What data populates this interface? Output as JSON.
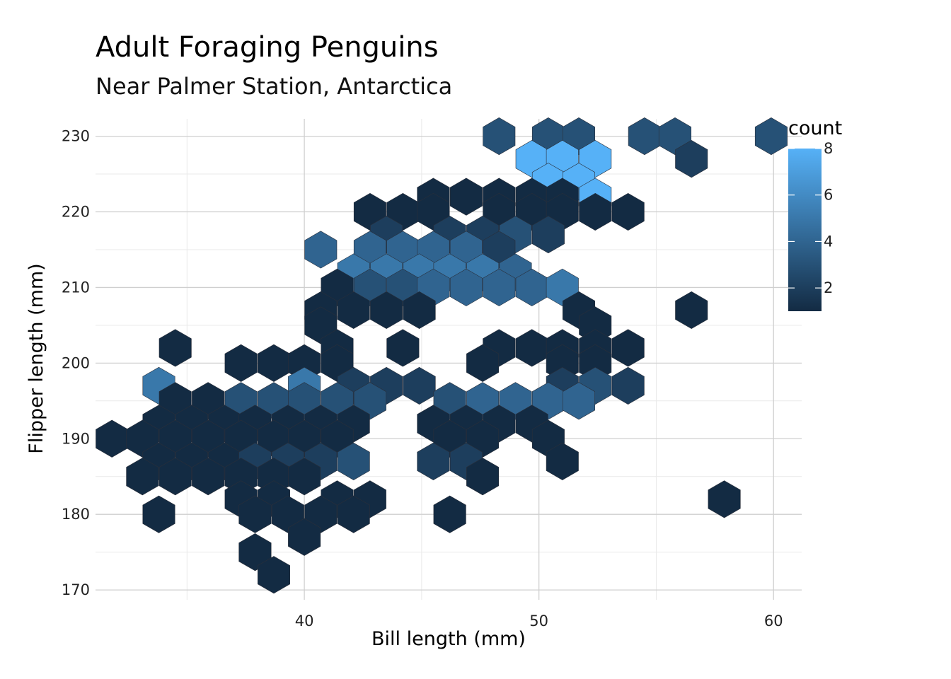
{
  "chart_data": {
    "type": "hexbin",
    "title": "Adult Foraging Penguins",
    "subtitle": "Near Palmer Station, Antarctica",
    "xlabel": "Bill length (mm)",
    "ylabel": "Flipper length (mm)",
    "xlim": [
      31.1,
      61.2
    ],
    "ylim": [
      168.7,
      232.3
    ],
    "x_ticks": [
      40,
      50,
      60
    ],
    "y_ticks": [
      170,
      180,
      190,
      200,
      210,
      220,
      230
    ],
    "hex_dx": 1.37,
    "hex_dy": 2.0,
    "legend": {
      "title": "count",
      "breaks": [
        2,
        4,
        6,
        8
      ],
      "range": [
        1,
        8
      ],
      "color_low": "#132B43",
      "color_high": "#56B1F7"
    },
    "bins": [
      {
        "x": 48.3,
        "y": 230.0,
        "count": 3
      },
      {
        "x": 50.4,
        "y": 230.0,
        "count": 3
      },
      {
        "x": 51.7,
        "y": 230.0,
        "count": 3
      },
      {
        "x": 54.5,
        "y": 230.0,
        "count": 3
      },
      {
        "x": 55.8,
        "y": 230.0,
        "count": 3
      },
      {
        "x": 59.9,
        "y": 230.0,
        "count": 3
      },
      {
        "x": 49.7,
        "y": 227.0,
        "count": 8
      },
      {
        "x": 51.0,
        "y": 227.0,
        "count": 8
      },
      {
        "x": 52.4,
        "y": 227.0,
        "count": 8
      },
      {
        "x": 56.5,
        "y": 227.0,
        "count": 2
      },
      {
        "x": 50.4,
        "y": 224.0,
        "count": 8
      },
      {
        "x": 51.7,
        "y": 224.0,
        "count": 8
      },
      {
        "x": 45.5,
        "y": 222.0,
        "count": 1
      },
      {
        "x": 46.9,
        "y": 222.0,
        "count": 1
      },
      {
        "x": 48.3,
        "y": 222.0,
        "count": 1
      },
      {
        "x": 49.7,
        "y": 222.0,
        "count": 1
      },
      {
        "x": 51.0,
        "y": 222.0,
        "count": 1
      },
      {
        "x": 52.4,
        "y": 222.0,
        "count": 8
      },
      {
        "x": 42.8,
        "y": 220.0,
        "count": 1
      },
      {
        "x": 44.2,
        "y": 220.0,
        "count": 1
      },
      {
        "x": 45.5,
        "y": 220.0,
        "count": 1
      },
      {
        "x": 48.3,
        "y": 220.0,
        "count": 1
      },
      {
        "x": 49.7,
        "y": 220.0,
        "count": 1
      },
      {
        "x": 51.0,
        "y": 220.0,
        "count": 1
      },
      {
        "x": 52.4,
        "y": 220.0,
        "count": 1
      },
      {
        "x": 53.8,
        "y": 220.0,
        "count": 1
      },
      {
        "x": 43.5,
        "y": 217.0,
        "count": 2
      },
      {
        "x": 46.2,
        "y": 217.0,
        "count": 2
      },
      {
        "x": 47.6,
        "y": 217.0,
        "count": 2
      },
      {
        "x": 49.0,
        "y": 217.0,
        "count": 3
      },
      {
        "x": 50.4,
        "y": 217.0,
        "count": 2
      },
      {
        "x": 40.7,
        "y": 215.0,
        "count": 4
      },
      {
        "x": 42.8,
        "y": 215.0,
        "count": 4
      },
      {
        "x": 44.2,
        "y": 215.0,
        "count": 4
      },
      {
        "x": 45.5,
        "y": 215.0,
        "count": 4
      },
      {
        "x": 46.9,
        "y": 215.0,
        "count": 4
      },
      {
        "x": 48.3,
        "y": 215.0,
        "count": 2
      },
      {
        "x": 42.1,
        "y": 212.0,
        "count": 5
      },
      {
        "x": 43.5,
        "y": 212.0,
        "count": 5
      },
      {
        "x": 44.9,
        "y": 212.0,
        "count": 5
      },
      {
        "x": 46.2,
        "y": 212.0,
        "count": 5
      },
      {
        "x": 47.6,
        "y": 212.0,
        "count": 5
      },
      {
        "x": 49.0,
        "y": 212.0,
        "count": 4
      },
      {
        "x": 41.4,
        "y": 210.0,
        "count": 1
      },
      {
        "x": 42.8,
        "y": 210.0,
        "count": 3
      },
      {
        "x": 44.2,
        "y": 210.0,
        "count": 3
      },
      {
        "x": 45.5,
        "y": 210.0,
        "count": 4
      },
      {
        "x": 46.9,
        "y": 210.0,
        "count": 4
      },
      {
        "x": 48.3,
        "y": 210.0,
        "count": 4
      },
      {
        "x": 49.7,
        "y": 210.0,
        "count": 4
      },
      {
        "x": 51.0,
        "y": 210.0,
        "count": 5
      },
      {
        "x": 40.7,
        "y": 207.0,
        "count": 1
      },
      {
        "x": 42.1,
        "y": 207.0,
        "count": 1
      },
      {
        "x": 43.5,
        "y": 207.0,
        "count": 1
      },
      {
        "x": 44.9,
        "y": 207.0,
        "count": 1
      },
      {
        "x": 51.7,
        "y": 207.0,
        "count": 1
      },
      {
        "x": 56.5,
        "y": 207.0,
        "count": 1
      },
      {
        "x": 40.7,
        "y": 205.0,
        "count": 1
      },
      {
        "x": 52.4,
        "y": 205.0,
        "count": 1
      },
      {
        "x": 34.5,
        "y": 202.0,
        "count": 1
      },
      {
        "x": 41.4,
        "y": 202.0,
        "count": 1
      },
      {
        "x": 44.2,
        "y": 202.0,
        "count": 1
      },
      {
        "x": 48.3,
        "y": 202.0,
        "count": 1
      },
      {
        "x": 49.7,
        "y": 202.0,
        "count": 1
      },
      {
        "x": 51.0,
        "y": 202.0,
        "count": 1
      },
      {
        "x": 52.4,
        "y": 202.0,
        "count": 1
      },
      {
        "x": 53.8,
        "y": 202.0,
        "count": 1
      },
      {
        "x": 37.3,
        "y": 200.0,
        "count": 1
      },
      {
        "x": 38.7,
        "y": 200.0,
        "count": 1
      },
      {
        "x": 40.0,
        "y": 200.0,
        "count": 1
      },
      {
        "x": 41.4,
        "y": 200.0,
        "count": 1
      },
      {
        "x": 47.6,
        "y": 200.0,
        "count": 1
      },
      {
        "x": 51.0,
        "y": 200.0,
        "count": 1
      },
      {
        "x": 52.4,
        "y": 200.0,
        "count": 1
      },
      {
        "x": 33.8,
        "y": 197.0,
        "count": 5
      },
      {
        "x": 40.0,
        "y": 197.0,
        "count": 5
      },
      {
        "x": 42.1,
        "y": 197.0,
        "count": 2
      },
      {
        "x": 43.5,
        "y": 197.0,
        "count": 2
      },
      {
        "x": 44.9,
        "y": 197.0,
        "count": 2
      },
      {
        "x": 51.0,
        "y": 197.0,
        "count": 2
      },
      {
        "x": 52.4,
        "y": 197.0,
        "count": 3
      },
      {
        "x": 53.8,
        "y": 197.0,
        "count": 2
      },
      {
        "x": 34.5,
        "y": 195.0,
        "count": 1
      },
      {
        "x": 35.9,
        "y": 195.0,
        "count": 1
      },
      {
        "x": 37.3,
        "y": 195.0,
        "count": 3
      },
      {
        "x": 38.7,
        "y": 195.0,
        "count": 3
      },
      {
        "x": 40.0,
        "y": 195.0,
        "count": 3
      },
      {
        "x": 41.4,
        "y": 195.0,
        "count": 3
      },
      {
        "x": 42.8,
        "y": 195.0,
        "count": 3
      },
      {
        "x": 46.2,
        "y": 195.0,
        "count": 3
      },
      {
        "x": 47.6,
        "y": 195.0,
        "count": 4
      },
      {
        "x": 49.0,
        "y": 195.0,
        "count": 4
      },
      {
        "x": 50.4,
        "y": 195.0,
        "count": 4
      },
      {
        "x": 51.7,
        "y": 195.0,
        "count": 4
      },
      {
        "x": 33.8,
        "y": 192.0,
        "count": 1
      },
      {
        "x": 35.2,
        "y": 192.0,
        "count": 1
      },
      {
        "x": 36.6,
        "y": 192.0,
        "count": 1
      },
      {
        "x": 37.9,
        "y": 192.0,
        "count": 1
      },
      {
        "x": 39.3,
        "y": 192.0,
        "count": 1
      },
      {
        "x": 40.7,
        "y": 192.0,
        "count": 1
      },
      {
        "x": 42.1,
        "y": 192.0,
        "count": 1
      },
      {
        "x": 45.5,
        "y": 192.0,
        "count": 1
      },
      {
        "x": 46.9,
        "y": 192.0,
        "count": 1
      },
      {
        "x": 48.3,
        "y": 192.0,
        "count": 1
      },
      {
        "x": 49.7,
        "y": 192.0,
        "count": 1
      },
      {
        "x": 31.8,
        "y": 190.0,
        "count": 1
      },
      {
        "x": 33.1,
        "y": 190.0,
        "count": 1
      },
      {
        "x": 34.5,
        "y": 190.0,
        "count": 1
      },
      {
        "x": 35.9,
        "y": 190.0,
        "count": 1
      },
      {
        "x": 37.3,
        "y": 190.0,
        "count": 1
      },
      {
        "x": 38.7,
        "y": 190.0,
        "count": 1
      },
      {
        "x": 40.0,
        "y": 190.0,
        "count": 1
      },
      {
        "x": 41.4,
        "y": 190.0,
        "count": 1
      },
      {
        "x": 46.2,
        "y": 190.0,
        "count": 1
      },
      {
        "x": 47.6,
        "y": 190.0,
        "count": 1
      },
      {
        "x": 50.4,
        "y": 190.0,
        "count": 1
      },
      {
        "x": 33.8,
        "y": 187.0,
        "count": 1
      },
      {
        "x": 35.2,
        "y": 187.0,
        "count": 1
      },
      {
        "x": 36.6,
        "y": 187.0,
        "count": 1
      },
      {
        "x": 37.9,
        "y": 187.0,
        "count": 2
      },
      {
        "x": 39.3,
        "y": 187.0,
        "count": 2
      },
      {
        "x": 40.7,
        "y": 187.0,
        "count": 2
      },
      {
        "x": 42.1,
        "y": 187.0,
        "count": 3
      },
      {
        "x": 45.5,
        "y": 187.0,
        "count": 2
      },
      {
        "x": 46.9,
        "y": 187.0,
        "count": 2
      },
      {
        "x": 51.0,
        "y": 187.0,
        "count": 1
      },
      {
        "x": 33.1,
        "y": 185.0,
        "count": 1
      },
      {
        "x": 34.5,
        "y": 185.0,
        "count": 1
      },
      {
        "x": 35.9,
        "y": 185.0,
        "count": 1
      },
      {
        "x": 37.3,
        "y": 185.0,
        "count": 1
      },
      {
        "x": 38.7,
        "y": 185.0,
        "count": 1
      },
      {
        "x": 40.0,
        "y": 185.0,
        "count": 1
      },
      {
        "x": 47.6,
        "y": 185.0,
        "count": 1
      },
      {
        "x": 37.3,
        "y": 182.0,
        "count": 1
      },
      {
        "x": 38.7,
        "y": 182.0,
        "count": 1
      },
      {
        "x": 41.4,
        "y": 182.0,
        "count": 1
      },
      {
        "x": 42.8,
        "y": 182.0,
        "count": 1
      },
      {
        "x": 57.9,
        "y": 182.0,
        "count": 1
      },
      {
        "x": 33.8,
        "y": 180.0,
        "count": 1
      },
      {
        "x": 37.9,
        "y": 180.0,
        "count": 1
      },
      {
        "x": 39.3,
        "y": 180.0,
        "count": 1
      },
      {
        "x": 40.7,
        "y": 180.0,
        "count": 1
      },
      {
        "x": 42.1,
        "y": 180.0,
        "count": 1
      },
      {
        "x": 46.2,
        "y": 180.0,
        "count": 1
      },
      {
        "x": 40.0,
        "y": 177.0,
        "count": 1
      },
      {
        "x": 37.9,
        "y": 175.0,
        "count": 1
      },
      {
        "x": 38.7,
        "y": 172.0,
        "count": 1
      }
    ]
  }
}
